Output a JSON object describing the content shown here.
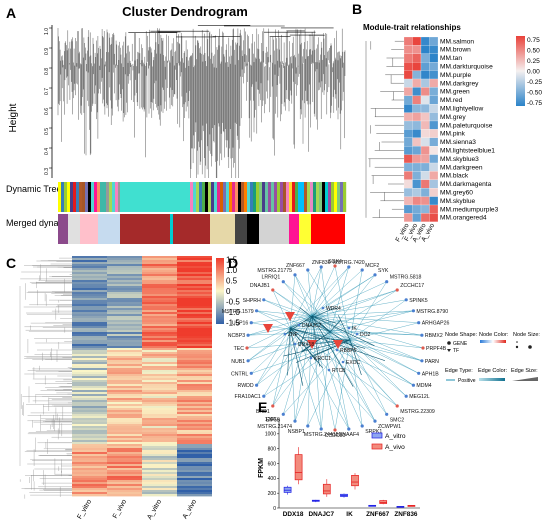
{
  "panels": {
    "A": {
      "letter": "A",
      "title": "Cluster Dendrogram",
      "ylabel": "Height",
      "yticks": [
        "1.0",
        "0.9",
        "0.8",
        "0.7",
        "0.6",
        "0.5",
        "0.4",
        "0.3"
      ],
      "row_labels": [
        "Dynamic Tree Cut",
        "Merged dynamic"
      ]
    },
    "B": {
      "letter": "B",
      "title": "Module-trait relationships",
      "columns": [
        "F_vitro",
        "F_vivo",
        "A_vitro",
        "A_vivo"
      ],
      "modules": [
        "MM.salmon",
        "MM.brown",
        "MM.tan",
        "MM.darkturquoise",
        "MM.purple",
        "MM.darkgrey",
        "MM.green",
        "MM.red",
        "MM.lightyellow",
        "MM.grey",
        "MM.paleturquoise",
        "MM.pink",
        "MM.sienna3",
        "MM.lightsteelblue1",
        "MM.skyblue3",
        "MM.darkgreen",
        "MM.black",
        "MM.darkmagenta",
        "MM.grey60",
        "MM.skyblue",
        "MM.mediumpurple3",
        "MM.orangered4"
      ],
      "legend_ticks": [
        "0.75",
        "0.50",
        "0.25",
        "0.00",
        "-0.25",
        "-0.50",
        "-0.75"
      ]
    },
    "C": {
      "letter": "C",
      "columns": [
        "F_vitro",
        "F_vivo",
        "A_vitro",
        "A_vivo"
      ],
      "legend_ticks": [
        "1.5",
        "1.0",
        "0.5",
        "0",
        "-0.5",
        "-1.0",
        "-1.5"
      ]
    },
    "D": {
      "letter": "D",
      "genes": [
        "SOX4",
        "MSTRG.7420",
        "MCF2",
        "SYK",
        "MSTRG.5818",
        "ZCCHC17",
        "SPINK5",
        "MSTRG.8790",
        "ARHGAP26",
        "RBMX2",
        "PRPF4B",
        "PARN",
        "APH1B",
        "MDM4",
        "MEG12L",
        "MSTRG.22309",
        "SMC2",
        "ZCWPW1",
        "SRPK1",
        "DNAAF4",
        "CCDC50",
        "MSTRG.24415",
        "NSBP1",
        "MSTRG.21474",
        "EIF5B",
        "BRD1",
        "FRA10AC1",
        "RWDD",
        "CNTRL",
        "NUB1",
        "TEC",
        "NCBP3",
        "USP16",
        "MSTRG.1579",
        "SHPRH",
        "DNAJB1",
        "LRRIQ1",
        "MSTRG.21775",
        "ZNF667",
        "ZNF836",
        "DNAJC7",
        "IK",
        "DDX18",
        "RBBP5",
        "WDR4",
        "KRCC1",
        "EXOC",
        "DO2",
        "ZNF",
        "RTCB"
      ],
      "legend": {
        "node_shape_title": "Node Shape:",
        "gene": "GENE",
        "tf": "TF",
        "node_color_title": "Node Color:",
        "node_size_title": "Node Size:",
        "edge_type_title": "Edge Type:",
        "edge_type_value": "Positive",
        "edge_color_title": "Edge Color:",
        "edge_size_title": "Edge Size:"
      }
    },
    "E": {
      "letter": "E",
      "ylabel": "FPKM",
      "yticks": [
        "1200",
        "1000",
        "800",
        "600",
        "400",
        "200",
        "0"
      ],
      "legend": [
        "A_vitro",
        "A_vivo"
      ],
      "colors": {
        "A_vitro": "#1f1fe6",
        "A_vivo": "#e61f1f"
      }
    }
  },
  "chart_data": {
    "type": "box",
    "title": "",
    "xlabel": "",
    "ylabel": "FPKM",
    "ylim": [
      0,
      1200
    ],
    "categories": [
      "DDX18",
      "DNAJC7",
      "IK",
      "ZNF667",
      "ZNF836"
    ],
    "series": [
      {
        "name": "A_vitro",
        "boxes": [
          {
            "min": 180,
            "q1": 210,
            "median": 240,
            "q3": 280,
            "max": 300
          },
          {
            "min": 80,
            "q1": 90,
            "median": 95,
            "q3": 105,
            "max": 110
          },
          {
            "min": 140,
            "q1": 155,
            "median": 170,
            "q3": 185,
            "max": 195
          },
          {
            "min": 25,
            "q1": 30,
            "median": 33,
            "q3": 36,
            "max": 40
          },
          {
            "min": 15,
            "q1": 18,
            "median": 20,
            "q3": 22,
            "max": 25
          }
        ]
      },
      {
        "name": "A_vivo",
        "boxes": [
          {
            "min": 320,
            "q1": 380,
            "median": 480,
            "q3": 720,
            "max": 820
          },
          {
            "min": 150,
            "q1": 190,
            "median": 230,
            "q3": 320,
            "max": 390
          },
          {
            "min": 250,
            "q1": 300,
            "median": 350,
            "q3": 440,
            "max": 470
          },
          {
            "min": 50,
            "q1": 60,
            "median": 75,
            "q3": 100,
            "max": 110
          },
          {
            "min": 20,
            "q1": 25,
            "median": 30,
            "q3": 35,
            "max": 40
          }
        ]
      }
    ]
  }
}
